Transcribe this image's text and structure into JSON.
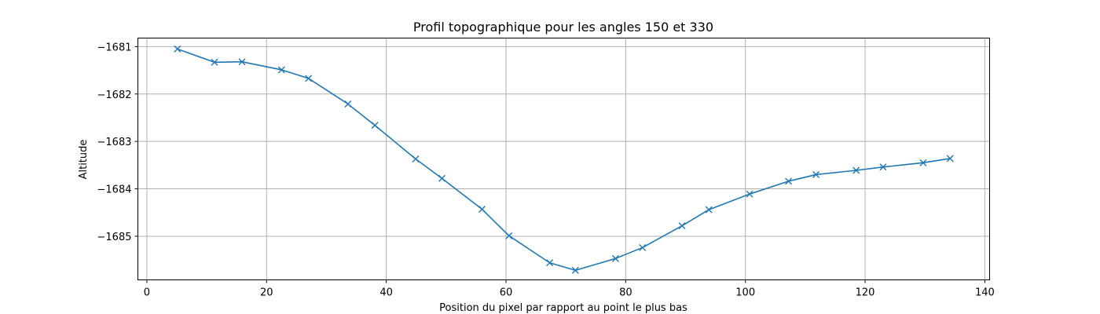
{
  "chart_data": {
    "type": "line",
    "title": "Profil topographique pour les angles 150 et 330",
    "xlabel": "Position du pixel par rapport au point le plus bas",
    "ylabel": "Altitude",
    "xlim": [
      -1.5,
      140.8
    ],
    "ylim": [
      -1685.92,
      -1680.82
    ],
    "xticks": [
      0,
      20,
      40,
      60,
      80,
      100,
      120,
      140
    ],
    "yticks": [
      -1681,
      -1682,
      -1683,
      -1684,
      -1685
    ],
    "xtick_labels": [
      "0",
      "20",
      "40",
      "60",
      "80",
      "100",
      "120",
      "140"
    ],
    "ytick_labels": [
      "−1681",
      "−1682",
      "−1683",
      "−1684",
      "−1685"
    ],
    "grid": true,
    "series": [
      {
        "color": "#1f77b4",
        "marker": "x",
        "x": [
          5.1,
          11.3,
          15.9,
          22.5,
          27.0,
          33.6,
          38.1,
          44.9,
          49.3,
          56.0,
          60.5,
          67.3,
          71.6,
          78.3,
          82.8,
          89.4,
          93.9,
          100.7,
          107.2,
          111.8,
          118.5,
          123.0,
          129.7,
          134.2
        ],
        "y": [
          -1681.05,
          -1681.33,
          -1681.32,
          -1681.49,
          -1681.67,
          -1682.21,
          -1682.66,
          -1683.37,
          -1683.78,
          -1684.43,
          -1684.99,
          -1685.56,
          -1685.72,
          -1685.47,
          -1685.24,
          -1684.78,
          -1684.44,
          -1684.11,
          -1683.84,
          -1683.7,
          -1683.61,
          -1683.54,
          -1683.45,
          -1683.36
        ]
      }
    ]
  }
}
